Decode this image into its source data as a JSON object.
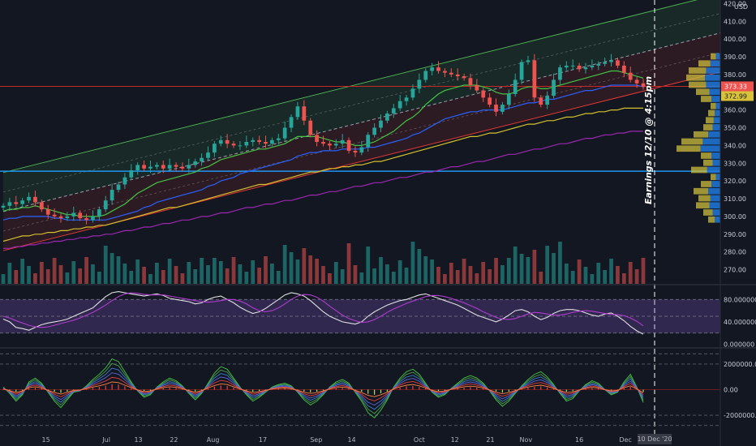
{
  "chart_data": [
    {
      "type": "candlestick",
      "currency": "USD",
      "ylim": [
        262,
        422
      ],
      "y_ticks": [
        270,
        280,
        290,
        300,
        310,
        320,
        330,
        340,
        350,
        360,
        370,
        380,
        390,
        400,
        410,
        420
      ],
      "x_tick_labels": [
        "15",
        "Jul",
        "13",
        "22",
        "Aug",
        "17",
        "Sep",
        "14",
        "Oct",
        "12",
        "21",
        "Nov",
        "16",
        "Dec"
      ],
      "last_price": "373.33",
      "secondary_price": "372.99",
      "series": [
        {
          "name": "close",
          "values": [
            306,
            308,
            307,
            309,
            311,
            308,
            304,
            301,
            300,
            299,
            300,
            302,
            299,
            298,
            300,
            304,
            309,
            315,
            318,
            322,
            326,
            329,
            327,
            328,
            329,
            327,
            329,
            328,
            327,
            329,
            331,
            333,
            336,
            341,
            343,
            341,
            340,
            340,
            342,
            343,
            342,
            341,
            343,
            344,
            350,
            356,
            362,
            354,
            346,
            342,
            341,
            340,
            341,
            343,
            337,
            336,
            339,
            346,
            350,
            354,
            358,
            361,
            365,
            367,
            372,
            377,
            382,
            384,
            382,
            381,
            380,
            379,
            378,
            374,
            371,
            367,
            363,
            359,
            363,
            369,
            377,
            387,
            388,
            367,
            363,
            368,
            377,
            384,
            385,
            385,
            383,
            384,
            385,
            386,
            387,
            388,
            385,
            381,
            377,
            375,
            373
          ]
        },
        {
          "name": "sma-fast",
          "values": [
            303,
            304,
            304,
            305,
            305,
            306,
            305,
            304,
            303,
            302,
            301,
            301,
            300,
            300,
            300,
            300,
            301,
            303,
            305,
            307,
            310,
            313,
            315,
            317,
            319,
            320,
            321,
            322,
            323,
            324,
            325,
            327,
            328,
            330,
            332,
            333,
            334,
            335,
            336,
            337,
            338,
            338,
            339,
            340,
            341,
            343,
            345,
            345,
            345,
            345,
            344,
            343,
            342,
            342,
            341,
            340,
            340,
            341,
            342,
            344,
            346,
            348,
            351,
            354,
            356,
            359,
            363,
            366,
            369,
            371,
            372,
            373,
            374,
            374,
            374,
            373,
            372,
            370,
            369,
            369,
            370,
            372,
            373,
            373,
            372,
            372,
            373,
            374,
            375,
            376,
            377,
            378,
            379,
            380,
            381,
            382,
            382,
            381,
            380,
            379,
            378
          ]
        },
        {
          "name": "sma-slow",
          "values": [
            298,
            299,
            299,
            300,
            300,
            300,
            300,
            300,
            299,
            299,
            298,
            298,
            298,
            298,
            298,
            298,
            298,
            299,
            300,
            301,
            302,
            303,
            305,
            306,
            308,
            309,
            310,
            311,
            312,
            313,
            314,
            315,
            317,
            318,
            320,
            321,
            322,
            324,
            325,
            326,
            327,
            328,
            329,
            330,
            331,
            332,
            334,
            335,
            336,
            336,
            337,
            337,
            337,
            338,
            338,
            338,
            338,
            339,
            339,
            340,
            341,
            342,
            343,
            344,
            346,
            347,
            349,
            351,
            353,
            355,
            356,
            357,
            358,
            359,
            359,
            360,
            360,
            360,
            360,
            361,
            362,
            363,
            364,
            364,
            365,
            366,
            366,
            367,
            368,
            369,
            370,
            371,
            371,
            372,
            373,
            374,
            374,
            374,
            374,
            374,
            373
          ]
        },
        {
          "name": "sma-100",
          "values": [
            286,
            287,
            288,
            289,
            289,
            290,
            290,
            291,
            291,
            292,
            292,
            293,
            293,
            294,
            294,
            295,
            295,
            296,
            297,
            298,
            299,
            300,
            301,
            302,
            303,
            304,
            305,
            305,
            306,
            307,
            308,
            309,
            310,
            311,
            312,
            313,
            314,
            315,
            316,
            317,
            318,
            318,
            319,
            320,
            321,
            322,
            323,
            324,
            325,
            325,
            326,
            327,
            327,
            328,
            328,
            329,
            329,
            330,
            331,
            331,
            332,
            333,
            334,
            335,
            336,
            337,
            338,
            339,
            340,
            341,
            342,
            343,
            344,
            345,
            345,
            346,
            347,
            347,
            348,
            349,
            350,
            351,
            352,
            352,
            353,
            354,
            354,
            355,
            356,
            356,
            357,
            358,
            358,
            359,
            359,
            360,
            360,
            361,
            361,
            361,
            361
          ]
        },
        {
          "name": "sma-200",
          "values": [
            282,
            282,
            283,
            283,
            284,
            284,
            285,
            285,
            286,
            286,
            287,
            287,
            288,
            288,
            289,
            289,
            290,
            290,
            291,
            292,
            292,
            293,
            294,
            294,
            295,
            296,
            296,
            297,
            298,
            298,
            299,
            300,
            300,
            301,
            302,
            302,
            303,
            304,
            305,
            305,
            306,
            307,
            307,
            308,
            309,
            309,
            310,
            311,
            312,
            312,
            313,
            314,
            314,
            315,
            316,
            317,
            317,
            318,
            319,
            319,
            320,
            321,
            322,
            322,
            323,
            324,
            325,
            325,
            326,
            327,
            328,
            328,
            329,
            330,
            331,
            331,
            332,
            333,
            334,
            335,
            335,
            336,
            337,
            338,
            338,
            339,
            340,
            341,
            341,
            342,
            343,
            344,
            344,
            345,
            346,
            346,
            347,
            347,
            348,
            348,
            348
          ]
        }
      ],
      "horizontal_levels": [
        373.33,
        325.5
      ],
      "earnings_annotation": "Earnings 12/10 @ 4:15pm",
      "volume_profile": [
        {
          "price": 298,
          "volume": 0.25
        },
        {
          "price": 302,
          "volume": 0.35
        },
        {
          "price": 306,
          "volume": 0.5
        },
        {
          "price": 310,
          "volume": 0.45
        },
        {
          "price": 314,
          "volume": 0.55
        },
        {
          "price": 318,
          "volume": 0.4
        },
        {
          "price": 322,
          "volume": 0.2
        },
        {
          "price": 326,
          "volume": 0.6
        },
        {
          "price": 330,
          "volume": 0.35
        },
        {
          "price": 334,
          "volume": 0.4
        },
        {
          "price": 338,
          "volume": 0.9
        },
        {
          "price": 342,
          "volume": 0.8
        },
        {
          "price": 346,
          "volume": 0.55
        },
        {
          "price": 350,
          "volume": 0.35
        },
        {
          "price": 354,
          "volume": 0.3
        },
        {
          "price": 358,
          "volume": 0.25
        },
        {
          "price": 362,
          "volume": 0.2
        },
        {
          "price": 366,
          "volume": 0.4
        },
        {
          "price": 370,
          "volume": 0.5
        },
        {
          "price": 374,
          "volume": 0.65
        },
        {
          "price": 378,
          "volume": 0.7
        },
        {
          "price": 382,
          "volume": 0.65
        },
        {
          "price": 386,
          "volume": 0.45
        },
        {
          "price": 390,
          "volume": 0.2
        }
      ]
    },
    {
      "type": "line",
      "ylim": [
        -5,
        105
      ],
      "y_ticks": [
        {
          "value": 0,
          "label": "0.000000"
        },
        {
          "value": 40,
          "label": "40.000000"
        },
        {
          "value": 80,
          "label": "80.000000"
        }
      ],
      "series": [
        {
          "name": "stoch-k",
          "values": [
            45,
            40,
            30,
            28,
            25,
            30,
            35,
            38,
            40,
            42,
            45,
            50,
            55,
            60,
            65,
            75,
            85,
            92,
            94,
            92,
            90,
            88,
            86,
            88,
            90,
            87,
            82,
            80,
            78,
            76,
            72,
            74,
            80,
            84,
            86,
            80,
            74,
            66,
            60,
            55,
            58,
            64,
            72,
            80,
            88,
            92,
            90,
            86,
            78,
            68,
            58,
            50,
            45,
            40,
            38,
            36,
            40,
            50,
            58,
            64,
            70,
            74,
            78,
            80,
            84,
            88,
            90,
            86,
            82,
            78,
            74,
            70,
            64,
            58,
            52,
            48,
            44,
            40,
            45,
            52,
            60,
            62,
            58,
            50,
            44,
            48,
            55,
            60,
            62,
            62,
            60,
            56,
            52,
            50,
            54,
            56,
            50,
            42,
            32,
            24,
            18
          ]
        },
        {
          "name": "stoch-d",
          "values": [
            50,
            47,
            42,
            38,
            34,
            31,
            30,
            31,
            34,
            37,
            40,
            43,
            47,
            52,
            57,
            63,
            70,
            78,
            85,
            90,
            92,
            91,
            89,
            88,
            88,
            88,
            86,
            84,
            82,
            80,
            78,
            76,
            75,
            76,
            78,
            80,
            80,
            77,
            72,
            65,
            60,
            58,
            60,
            65,
            72,
            80,
            86,
            89,
            88,
            84,
            77,
            68,
            60,
            52,
            46,
            42,
            39,
            40,
            44,
            50,
            57,
            63,
            68,
            73,
            77,
            81,
            85,
            87,
            87,
            85,
            82,
            78,
            74,
            69,
            64,
            58,
            53,
            48,
            45,
            44,
            46,
            50,
            54,
            57,
            56,
            54,
            52,
            52,
            54,
            57,
            59,
            60,
            59,
            57,
            55,
            53,
            53,
            51,
            47,
            41,
            33
          ]
        }
      ]
    },
    {
      "type": "line",
      "ylim": [
        -3200000,
        3200000
      ],
      "y_ticks": [
        {
          "value": 2000000,
          "label": "2000000.00"
        },
        {
          "value": 0,
          "label": "0.00"
        },
        {
          "value": -2000000,
          "label": "-2000000.00"
        }
      ],
      "series": [
        {
          "name": "osc",
          "values": [
            200000,
            -300000,
            -900000,
            -400000,
            600000,
            900000,
            500000,
            -200000,
            -900000,
            -1400000,
            -800000,
            -200000,
            -100000,
            300000,
            800000,
            1200000,
            1700000,
            2400000,
            2200000,
            1400000,
            600000,
            -100000,
            -600000,
            -400000,
            200000,
            600000,
            900000,
            700000,
            300000,
            -300000,
            -800000,
            -300000,
            500000,
            1300000,
            1800000,
            1600000,
            900000,
            200000,
            -400000,
            -900000,
            -600000,
            -200000,
            200000,
            400000,
            500000,
            300000,
            -200000,
            -800000,
            -1200000,
            -900000,
            -400000,
            200000,
            600000,
            800000,
            500000,
            -200000,
            -900000,
            -1800000,
            -2200000,
            -1600000,
            -800000,
            200000,
            900000,
            1400000,
            1600000,
            1200000,
            500000,
            -200000,
            -600000,
            -400000,
            100000,
            500000,
            900000,
            1100000,
            900000,
            500000,
            -100000,
            -800000,
            -1300000,
            -900000,
            -300000,
            300000,
            800000,
            1200000,
            1400000,
            1000000,
            400000,
            -300000,
            -900000,
            -700000,
            -100000,
            400000,
            700000,
            500000,
            0,
            -400000,
            -200000,
            600000,
            1200000,
            200000,
            -1000000
          ]
        }
      ]
    }
  ],
  "x_axis": {
    "date_label": "10 Dec '20"
  },
  "colors": {
    "bg": "#131722",
    "up": "#26a69a",
    "down": "#ef5350",
    "channel_green": "#4caf50",
    "channel_red": "#e53935",
    "blue_line": "#2962ff",
    "yellow_line": "#d4c02a",
    "purple_line": "#9c27b0",
    "level_red": "#c62828",
    "level_blue": "#2196f3",
    "stoch_k": "#e0e0e0",
    "stoch_d": "#b03cd0",
    "osc_green": "#43c443",
    "osc_red": "#ff3b3b"
  }
}
